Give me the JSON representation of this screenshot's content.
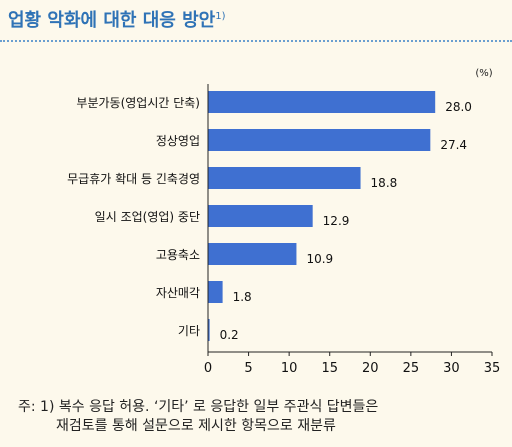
{
  "title": "업황 악화에 대한 대응 방안",
  "title_note": "1)",
  "unit_label": "(%)",
  "footnote": {
    "line1": "주: 1) 복수 응답 허용. ‘기타’ 로 응답한 일부 주관식 답변들은",
    "line2": "재검토를 통해 설문으로 제시한 항목으로 재분류"
  },
  "colors": {
    "bar": "#3f70d1",
    "title": "#2f73b6",
    "background": "#fdf9ec"
  },
  "chart_data": {
    "type": "bar",
    "orientation": "horizontal",
    "categories": [
      "부분가동(영업시간 단축)",
      "정상영업",
      "무급휴가 확대 등 긴축경영",
      "일시 조업(영업) 중단",
      "고용축소",
      "자산매각",
      "기타"
    ],
    "values": [
      28.0,
      27.4,
      18.8,
      12.9,
      10.9,
      1.8,
      0.2
    ],
    "value_labels": [
      "28.0",
      "27.4",
      "18.8",
      "12.9",
      "10.9",
      "1.8",
      "0.2"
    ],
    "xlim": [
      0,
      35
    ],
    "xticks": [
      0,
      5,
      10,
      15,
      20,
      25,
      30,
      35
    ],
    "grid": false
  }
}
